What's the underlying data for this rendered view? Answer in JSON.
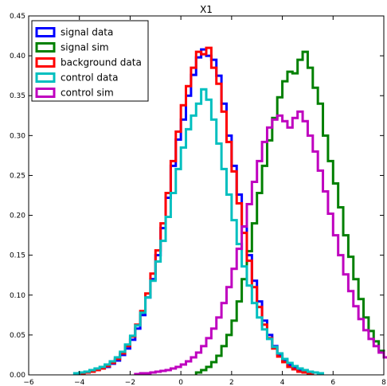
{
  "chart_data": {
    "type": "histogram-step",
    "title": "X1",
    "xlabel": "",
    "ylabel": "",
    "xlim": [
      -6,
      8
    ],
    "ylim": [
      0,
      0.45
    ],
    "xticks": [
      -6,
      -4,
      -2,
      0,
      2,
      4,
      6,
      8
    ],
    "yticks": [
      0.0,
      0.05,
      0.1,
      0.15,
      0.2,
      0.25,
      0.3,
      0.35,
      0.4,
      0.45
    ],
    "xtick_labels": [
      "−6",
      "−4",
      "−2",
      "0",
      "2",
      "4",
      "6",
      "8"
    ],
    "ytick_labels": [
      "0.00",
      "0.05",
      "0.10",
      "0.15",
      "0.20",
      "0.25",
      "0.30",
      "0.35",
      "0.40",
      "0.45"
    ],
    "legend_position": "top-left",
    "series": [
      {
        "name": "signal data",
        "color": "#0000ff",
        "x_start": -4.0,
        "bin_width": 0.2,
        "values": [
          0.002,
          0.003,
          0.005,
          0.006,
          0.008,
          0.01,
          0.014,
          0.018,
          0.025,
          0.033,
          0.044,
          0.058,
          0.075,
          0.097,
          0.12,
          0.15,
          0.184,
          0.222,
          0.262,
          0.295,
          0.32,
          0.35,
          0.376,
          0.398,
          0.408,
          0.4,
          0.395,
          0.375,
          0.34,
          0.3,
          0.262,
          0.226,
          0.186,
          0.15,
          0.118,
          0.092,
          0.068,
          0.05,
          0.036,
          0.026,
          0.018,
          0.012,
          0.008,
          0.005,
          0.003,
          0.002
        ]
      },
      {
        "name": "signal sim",
        "color": "#008000",
        "x_start": 0.6,
        "bin_width": 0.2,
        "values": [
          0.003,
          0.006,
          0.01,
          0.016,
          0.024,
          0.036,
          0.05,
          0.068,
          0.092,
          0.12,
          0.155,
          0.19,
          0.228,
          0.262,
          0.294,
          0.322,
          0.348,
          0.368,
          0.38,
          0.378,
          0.395,
          0.405,
          0.385,
          0.36,
          0.34,
          0.3,
          0.268,
          0.24,
          0.21,
          0.175,
          0.148,
          0.12,
          0.095,
          0.072,
          0.055,
          0.042,
          0.03,
          0.022,
          0.016,
          0.011,
          0.007,
          0.004,
          0.002
        ]
      },
      {
        "name": "background data",
        "color": "#ff0000",
        "x_start": -4.0,
        "bin_width": 0.2,
        "values": [
          0.002,
          0.003,
          0.004,
          0.006,
          0.008,
          0.011,
          0.015,
          0.02,
          0.027,
          0.036,
          0.048,
          0.063,
          0.08,
          0.102,
          0.127,
          0.156,
          0.19,
          0.228,
          0.268,
          0.305,
          0.338,
          0.362,
          0.385,
          0.405,
          0.402,
          0.41,
          0.385,
          0.365,
          0.33,
          0.292,
          0.255,
          0.215,
          0.178,
          0.143,
          0.11,
          0.085,
          0.063,
          0.046,
          0.033,
          0.023,
          0.016,
          0.01,
          0.007,
          0.004,
          0.003,
          0.002
        ]
      },
      {
        "name": "control data",
        "color": "#00bfbf",
        "x_start": -4.2,
        "bin_width": 0.2,
        "values": [
          0.002,
          0.003,
          0.004,
          0.006,
          0.008,
          0.01,
          0.013,
          0.017,
          0.022,
          0.029,
          0.038,
          0.049,
          0.062,
          0.078,
          0.097,
          0.118,
          0.142,
          0.168,
          0.198,
          0.228,
          0.258,
          0.285,
          0.308,
          0.325,
          0.34,
          0.358,
          0.345,
          0.32,
          0.29,
          0.258,
          0.226,
          0.194,
          0.164,
          0.136,
          0.112,
          0.09,
          0.072,
          0.057,
          0.045,
          0.035,
          0.027,
          0.02,
          0.015,
          0.011,
          0.008,
          0.006,
          0.004,
          0.003,
          0.002
        ]
      },
      {
        "name": "control sim",
        "color": "#bf00bf",
        "x_start": -1.8,
        "bin_width": 0.2,
        "values": [
          0.001,
          0.002,
          0.002,
          0.003,
          0.004,
          0.005,
          0.006,
          0.008,
          0.01,
          0.013,
          0.017,
          0.022,
          0.028,
          0.036,
          0.046,
          0.058,
          0.072,
          0.09,
          0.11,
          0.133,
          0.158,
          0.186,
          0.214,
          0.242,
          0.268,
          0.292,
          0.31,
          0.32,
          0.325,
          0.318,
          0.31,
          0.322,
          0.33,
          0.318,
          0.3,
          0.28,
          0.256,
          0.23,
          0.202,
          0.175,
          0.15,
          0.126,
          0.105,
          0.086,
          0.07,
          0.056,
          0.045,
          0.036,
          0.028,
          0.022,
          0.017,
          0.013,
          0.01,
          0.008,
          0.006,
          0.004,
          0.003,
          0.002
        ]
      }
    ]
  }
}
